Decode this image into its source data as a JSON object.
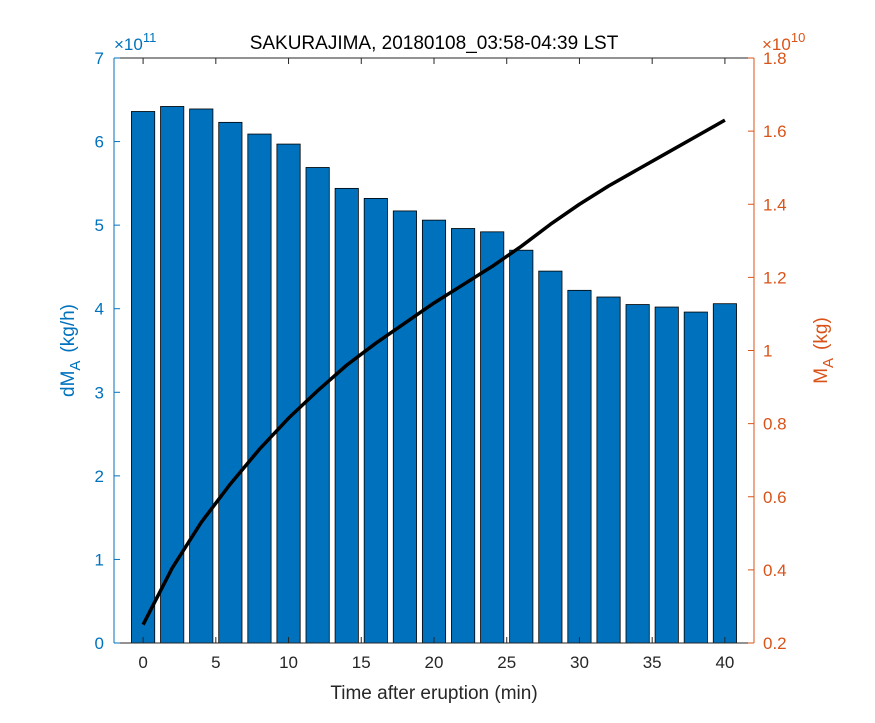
{
  "chart_data": {
    "type": "bar",
    "title": "SAKURAJIMA, 20180108_03:58-04:39 LST",
    "xlabel": "Time after eruption (min)",
    "ylabel_left": {
      "main": "dM",
      "sub": "A",
      "unit": "(kg/h)"
    },
    "ylabel_right": {
      "main": "M",
      "sub": "A",
      "unit": "(kg)"
    },
    "left_exponent": {
      "base": "×10",
      "power": "11"
    },
    "right_exponent": {
      "base": "×10",
      "power": "10"
    },
    "xlim": [
      -2,
      42
    ],
    "ylim_left": [
      0,
      7
    ],
    "ylim_right": [
      0.2,
      1.8
    ],
    "x_ticks": [
      "0",
      "5",
      "10",
      "15",
      "20",
      "25",
      "30",
      "35",
      "40"
    ],
    "left_ticks": [
      "0",
      "1",
      "2",
      "3",
      "4",
      "5",
      "6",
      "7"
    ],
    "right_ticks": [
      "0.2",
      "0.4",
      "0.6",
      "0.8",
      "1",
      "1.2",
      "1.4",
      "1.6",
      "1.8"
    ],
    "grid": false,
    "series": [
      {
        "type": "bar",
        "axis": "left",
        "color": "#0072BD",
        "x": [
          0,
          2,
          4,
          6,
          8,
          10,
          12,
          14,
          16,
          18,
          20,
          22,
          24,
          26,
          28,
          30,
          32,
          34,
          36,
          38,
          40
        ],
        "values": [
          6.36,
          6.42,
          6.39,
          6.23,
          6.09,
          5.97,
          5.69,
          5.44,
          5.32,
          5.17,
          5.06,
          4.96,
          4.92,
          4.7,
          4.45,
          4.22,
          4.14,
          4.05,
          4.02,
          3.96,
          4.06
        ]
      },
      {
        "type": "line",
        "axis": "right",
        "color": "#000000",
        "x": [
          0,
          2,
          4,
          6,
          8,
          10,
          12,
          14,
          16,
          18,
          20,
          22,
          24,
          26,
          28,
          30,
          32,
          34,
          36,
          38,
          40
        ],
        "values": [
          0.25,
          0.405,
          0.53,
          0.635,
          0.73,
          0.815,
          0.89,
          0.96,
          1.02,
          1.075,
          1.13,
          1.18,
          1.23,
          1.285,
          1.345,
          1.4,
          1.45,
          1.495,
          1.54,
          1.585,
          1.63
        ]
      }
    ]
  }
}
